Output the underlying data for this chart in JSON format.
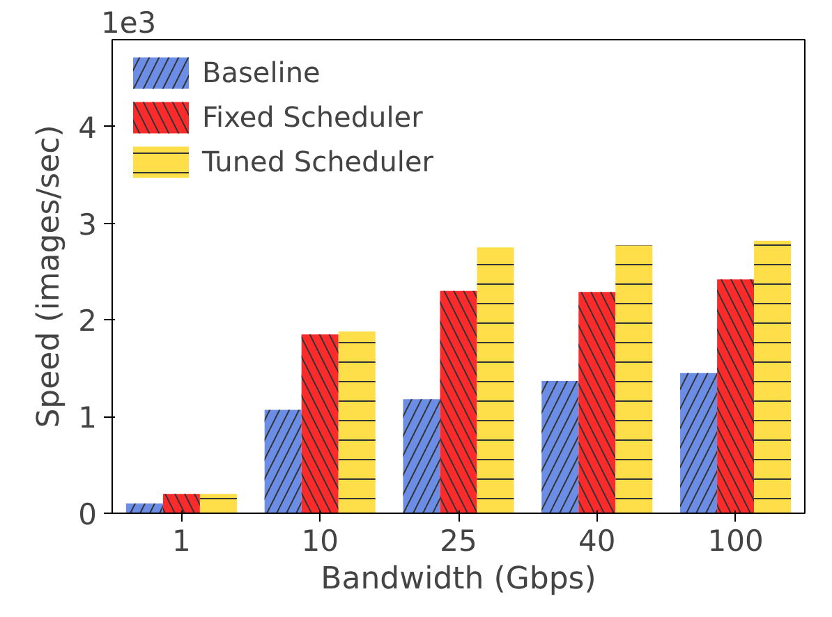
{
  "chart_data": {
    "type": "bar",
    "xlabel": "Bandwidth (Gbps)",
    "ylabel": "Speed (images/sec)",
    "categories": [
      "1",
      "10",
      "25",
      "40",
      "100"
    ],
    "series": [
      {
        "name": "Baseline",
        "color": "#6b8de6",
        "values": [
          0.1,
          1.07,
          1.18,
          1.37,
          1.45
        ]
      },
      {
        "name": "Fixed Scheduler",
        "color": "#fb2b2b",
        "values": [
          0.2,
          1.85,
          2.3,
          2.29,
          2.42
        ]
      },
      {
        "name": "Tuned Scheduler",
        "color": "#fedf4a",
        "values": [
          0.2,
          1.88,
          2.75,
          2.77,
          2.82
        ]
      }
    ],
    "ylim": [
      0,
      4.9
    ],
    "yticks": [
      0,
      1,
      2,
      3,
      4
    ],
    "annotations": [
      "1e3"
    ],
    "legend": "top left",
    "grid": false
  }
}
